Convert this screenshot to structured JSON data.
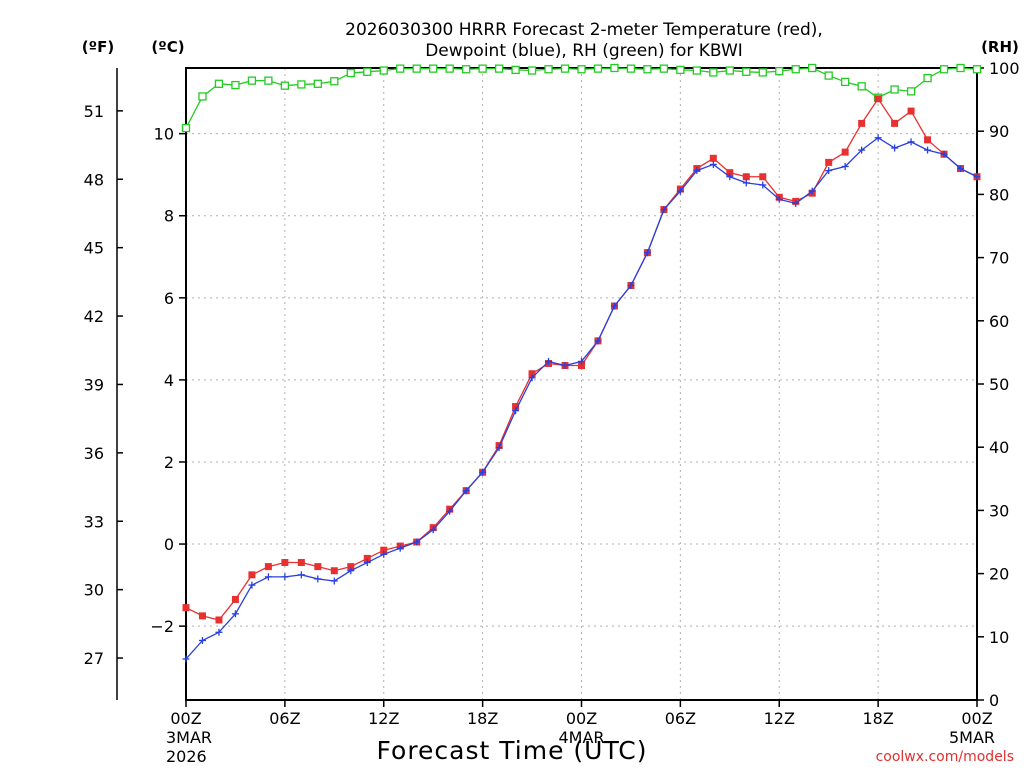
{
  "chart_data": {
    "type": "line",
    "title_line1": "2026030300 HRRR Forecast 2-meter Temperature (red),",
    "title_line2": "Dewpoint (blue), RH (green) for KBWI",
    "xlabel": "Forecast Time (UTC)",
    "credit": "coolwx.com/models",
    "axis_units": {
      "fahrenheit": "(ºF)",
      "celsius": "(ºC)",
      "rh": "(RH)"
    },
    "celsius_axis": {
      "ylim": [
        -3.8,
        11.6
      ],
      "ticks": [
        "-2",
        "0",
        "2",
        "4",
        "6",
        "8",
        "10"
      ]
    },
    "fahrenheit_axis": {
      "ticks": [
        "27",
        "30",
        "33",
        "36",
        "39",
        "42",
        "45",
        "48",
        "51"
      ]
    },
    "rh_axis": {
      "ylim": [
        0,
        100
      ],
      "ticks": [
        "0",
        "10",
        "20",
        "30",
        "40",
        "50",
        "60",
        "70",
        "80",
        "90",
        "100"
      ]
    },
    "x_ticks": [
      {
        "hour": 0,
        "label": "00Z",
        "sub": "3MAR",
        "sub2": "2026"
      },
      {
        "hour": 6,
        "label": "06Z"
      },
      {
        "hour": 12,
        "label": "12Z"
      },
      {
        "hour": 18,
        "label": "18Z"
      },
      {
        "hour": 24,
        "label": "00Z",
        "sub": "4MAR"
      },
      {
        "hour": 30,
        "label": "06Z"
      },
      {
        "hour": 36,
        "label": "12Z"
      },
      {
        "hour": 42,
        "label": "18Z"
      },
      {
        "hour": 48,
        "label": "00Z",
        "sub": "5MAR"
      }
    ],
    "grid": true,
    "colors": {
      "temperature": "#e83030",
      "dewpoint": "#2840e0",
      "rh": "#22cc22",
      "grid": "#b0b0b0"
    },
    "series": [
      {
        "name": "Temperature",
        "axis": "celsius",
        "values": [
          -1.55,
          -1.75,
          -1.85,
          -1.35,
          -0.75,
          -0.55,
          -0.45,
          -0.45,
          -0.55,
          -0.65,
          -0.55,
          -0.35,
          -0.15,
          -0.05,
          0.05,
          0.4,
          0.85,
          1.3,
          1.75,
          2.4,
          3.35,
          4.15,
          4.4,
          4.35,
          4.35,
          4.95,
          5.8,
          6.3,
          7.1,
          8.15,
          8.65,
          9.15,
          9.4,
          9.05,
          8.95,
          8.95,
          8.45,
          8.35,
          8.55,
          9.3,
          9.55,
          10.25,
          10.85,
          10.25,
          10.55,
          9.85,
          9.5,
          9.15,
          8.95
        ]
      },
      {
        "name": "Dewpoint",
        "axis": "celsius",
        "values": [
          -2.8,
          -2.35,
          -2.15,
          -1.7,
          -1.0,
          -0.8,
          -0.8,
          -0.75,
          -0.85,
          -0.9,
          -0.65,
          -0.45,
          -0.25,
          -0.1,
          0.05,
          0.35,
          0.8,
          1.3,
          1.75,
          2.35,
          3.25,
          4.05,
          4.45,
          4.35,
          4.45,
          4.95,
          5.8,
          6.3,
          7.1,
          8.15,
          8.6,
          9.1,
          9.25,
          8.95,
          8.8,
          8.75,
          8.4,
          8.3,
          8.6,
          9.1,
          9.2,
          9.6,
          9.9,
          9.65,
          9.8,
          9.6,
          9.5,
          9.15,
          8.95
        ]
      },
      {
        "name": "RH",
        "axis": "rh",
        "values": [
          90.5,
          95.5,
          97.5,
          97.3,
          98.0,
          98.0,
          97.2,
          97.4,
          97.5,
          97.9,
          99.2,
          99.4,
          99.6,
          99.9,
          99.9,
          99.9,
          99.9,
          99.8,
          99.9,
          99.9,
          99.7,
          99.6,
          99.8,
          99.9,
          99.8,
          99.9,
          100.0,
          99.9,
          99.8,
          99.9,
          99.7,
          99.6,
          99.3,
          99.6,
          99.4,
          99.3,
          99.5,
          99.8,
          100.0,
          98.8,
          97.8,
          97.1,
          95.3,
          96.6,
          96.3,
          98.4,
          99.8,
          100.0,
          99.8
        ]
      }
    ]
  }
}
